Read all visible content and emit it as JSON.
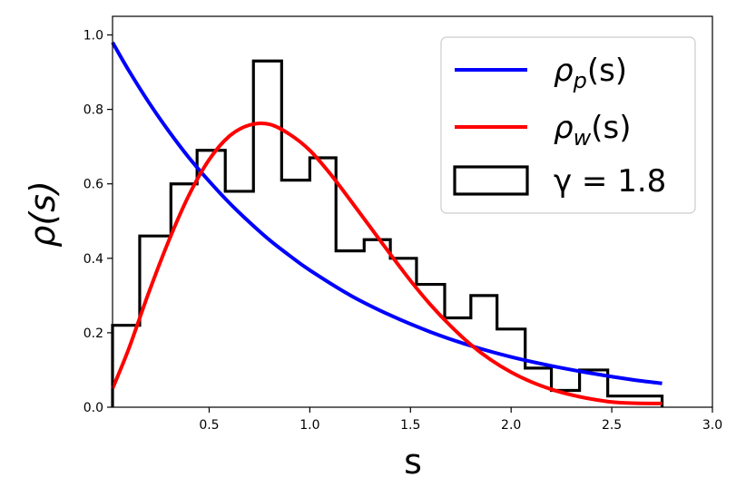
{
  "chart_data": {
    "type": "line",
    "xlabel": "s",
    "ylabel": "ρ(s)",
    "xlim": [
      0.02,
      3.0
    ],
    "ylim": [
      0.0,
      1.05
    ],
    "xticks": [
      0.5,
      1.0,
      1.5,
      2.0,
      2.5,
      3.0
    ],
    "xtick_labels": [
      "0.5",
      "1.0",
      "1.5",
      "2.0",
      "2.5",
      "3.0"
    ],
    "yticks": [
      0.0,
      0.2,
      0.4,
      0.6,
      0.8,
      1.0
    ],
    "ytick_labels": [
      "0.0",
      "0.2",
      "0.4",
      "0.6",
      "0.8",
      "1.0"
    ],
    "grid": false,
    "legend_position": "top-right",
    "series": [
      {
        "name": "ρ_p(s)",
        "color": "#0000ff",
        "x": [
          0.02,
          0.1,
          0.2,
          0.3,
          0.4,
          0.5,
          0.6,
          0.7,
          0.8,
          0.9,
          1.0,
          1.2,
          1.4,
          1.6,
          1.8,
          2.0,
          2.2,
          2.4,
          2.6,
          2.75
        ],
        "y": [
          0.98,
          0.905,
          0.819,
          0.741,
          0.67,
          0.607,
          0.549,
          0.497,
          0.449,
          0.407,
          0.368,
          0.301,
          0.247,
          0.202,
          0.165,
          0.135,
          0.111,
          0.091,
          0.074,
          0.064
        ]
      },
      {
        "name": "ρ_w(s)",
        "color": "#ff0000",
        "x": [
          0.02,
          0.1,
          0.2,
          0.3,
          0.4,
          0.5,
          0.6,
          0.7,
          0.8,
          0.9,
          1.0,
          1.1,
          1.2,
          1.3,
          1.4,
          1.5,
          1.6,
          1.7,
          1.8,
          1.9,
          2.0,
          2.1,
          2.2,
          2.3,
          2.4,
          2.5,
          2.6,
          2.75
        ],
        "y": [
          0.05,
          0.156,
          0.308,
          0.448,
          0.57,
          0.665,
          0.728,
          0.758,
          0.76,
          0.733,
          0.69,
          0.628,
          0.557,
          0.484,
          0.411,
          0.34,
          0.275,
          0.218,
          0.168,
          0.127,
          0.094,
          0.068,
          0.048,
          0.033,
          0.022,
          0.014,
          0.011,
          0.01
        ]
      }
    ],
    "histogram": {
      "name": "γ = 1.8",
      "color": "#000000",
      "bin_edges": [
        0.02,
        0.155,
        0.31,
        0.44,
        0.58,
        0.72,
        0.86,
        1.0,
        1.13,
        1.27,
        1.4,
        1.53,
        1.67,
        1.8,
        1.93,
        2.07,
        2.2,
        2.34,
        2.48,
        2.75
      ],
      "heights": [
        0.22,
        0.46,
        0.6,
        0.69,
        0.58,
        0.93,
        0.61,
        0.67,
        0.42,
        0.45,
        0.4,
        0.33,
        0.24,
        0.3,
        0.21,
        0.105,
        0.045,
        0.1,
        0.03
      ]
    },
    "legend": {
      "entries": [
        {
          "base": "ρ",
          "sub": "p",
          "suffix": "(s)",
          "color": "#0000ff",
          "kind": "line"
        },
        {
          "base": "ρ",
          "sub": "w",
          "suffix": "(s)",
          "color": "#ff0000",
          "kind": "line"
        },
        {
          "base": "γ = 1.8",
          "sub": "",
          "suffix": "",
          "color": "#000000",
          "kind": "box"
        }
      ]
    }
  }
}
